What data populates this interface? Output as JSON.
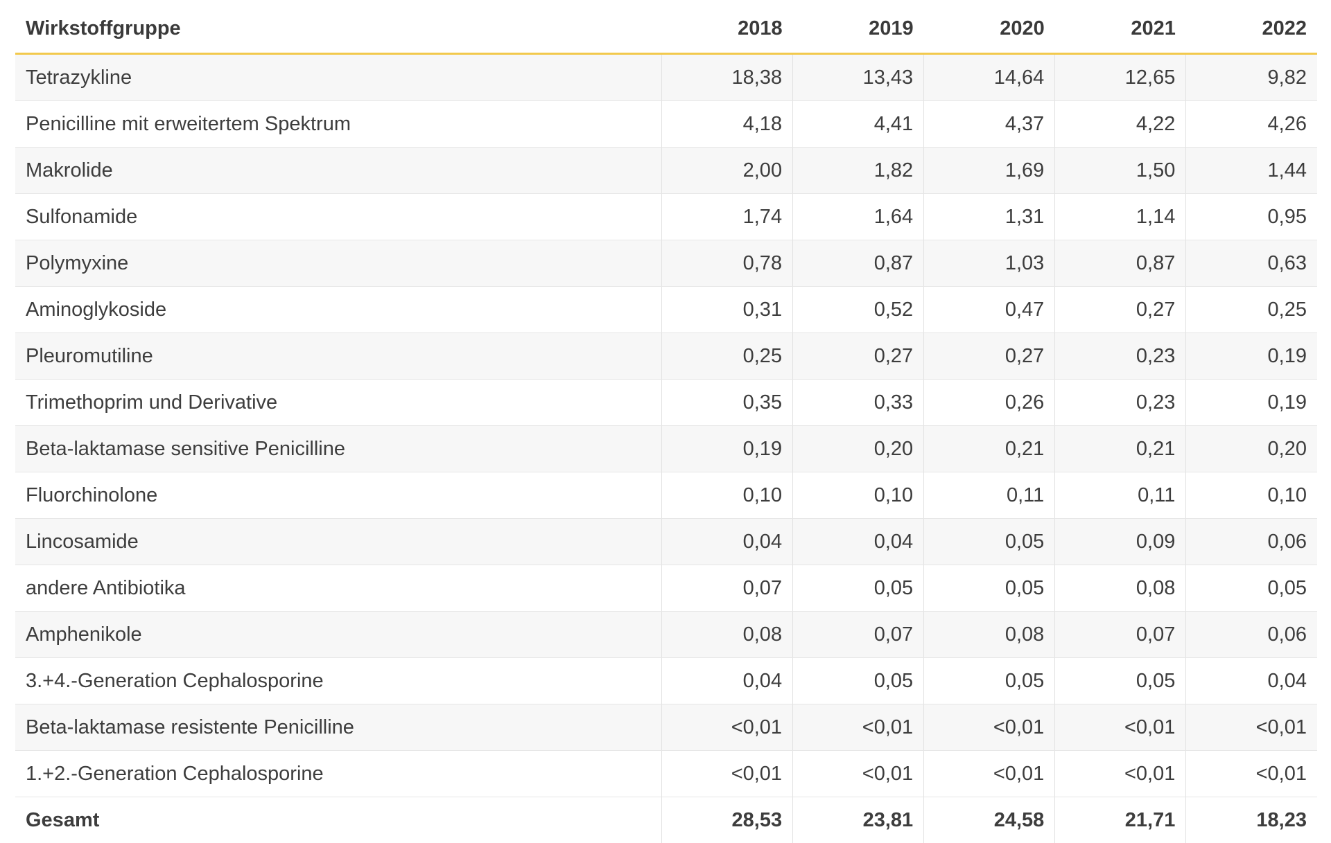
{
  "table": {
    "columns": [
      "Wirkstoffgruppe",
      "2018",
      "2019",
      "2020",
      "2021",
      "2022"
    ],
    "rows": [
      {
        "name": "Tetrazykline",
        "values": [
          "18,38",
          "13,43",
          "14,64",
          "12,65",
          "9,82"
        ]
      },
      {
        "name": "Penicilline mit erweitertem Spektrum",
        "values": [
          "4,18",
          "4,41",
          "4,37",
          "4,22",
          "4,26"
        ]
      },
      {
        "name": "Makrolide",
        "values": [
          "2,00",
          "1,82",
          "1,69",
          "1,50",
          "1,44"
        ]
      },
      {
        "name": "Sulfonamide",
        "values": [
          "1,74",
          "1,64",
          "1,31",
          "1,14",
          "0,95"
        ]
      },
      {
        "name": "Polymyxine",
        "values": [
          "0,78",
          "0,87",
          "1,03",
          "0,87",
          "0,63"
        ]
      },
      {
        "name": "Aminoglykoside",
        "values": [
          "0,31",
          "0,52",
          "0,47",
          "0,27",
          "0,25"
        ]
      },
      {
        "name": "Pleuromutiline",
        "values": [
          "0,25",
          "0,27",
          "0,27",
          "0,23",
          "0,19"
        ]
      },
      {
        "name": "Trimethoprim und Derivative",
        "values": [
          "0,35",
          "0,33",
          "0,26",
          "0,23",
          "0,19"
        ]
      },
      {
        "name": "Beta-laktamase sensitive Penicilline",
        "values": [
          "0,19",
          "0,20",
          "0,21",
          "0,21",
          "0,20"
        ]
      },
      {
        "name": "Fluorchinolone",
        "values": [
          "0,10",
          "0,10",
          "0,11",
          "0,11",
          "0,10"
        ]
      },
      {
        "name": "Lincosamide",
        "values": [
          "0,04",
          "0,04",
          "0,05",
          "0,09",
          "0,06"
        ]
      },
      {
        "name": "andere Antibiotika",
        "values": [
          "0,07",
          "0,05",
          "0,05",
          "0,08",
          "0,05"
        ]
      },
      {
        "name": "Amphenikole",
        "values": [
          "0,08",
          "0,07",
          "0,08",
          "0,07",
          "0,06"
        ]
      },
      {
        "name": "3.+4.-Generation Cephalosporine",
        "values": [
          "0,04",
          "0,05",
          "0,05",
          "0,05",
          "0,04"
        ]
      },
      {
        "name": "Beta-laktamase resistente Penicilline",
        "values": [
          "<0,01",
          "<0,01",
          "<0,01",
          "<0,01",
          "<0,01"
        ]
      },
      {
        "name": "1.+2.-Generation Cephalosporine",
        "values": [
          "<0,01",
          "<0,01",
          "<0,01",
          "<0,01",
          "<0,01"
        ]
      }
    ],
    "total": {
      "name": "Gesamt",
      "values": [
        "28,53",
        "23,81",
        "24,58",
        "21,71",
        "18,23"
      ]
    }
  },
  "colors": {
    "header_rule": "#f2c94c",
    "stripe": "#f7f7f7",
    "text": "#3d3d3d"
  }
}
